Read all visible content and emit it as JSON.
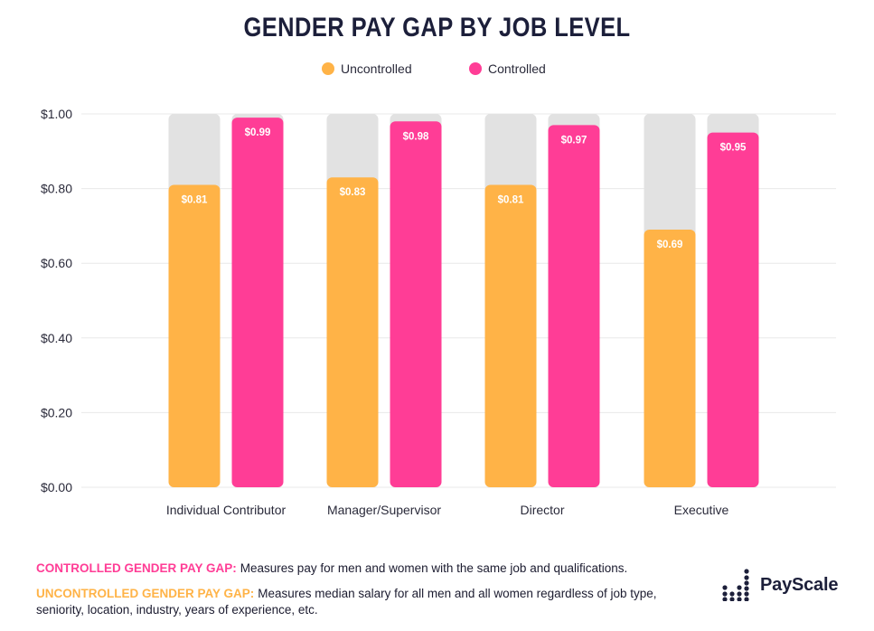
{
  "title": "GENDER PAY GAP BY JOB LEVEL",
  "colors": {
    "uncontrolled": "#FFB347",
    "controlled": "#FF3D96",
    "track": "#E2E2E2",
    "grid": "#E8E8E8"
  },
  "legend": [
    {
      "label": "Uncontrolled",
      "color": "#FFB347"
    },
    {
      "label": "Controlled",
      "color": "#FF3D96"
    }
  ],
  "chart_data": {
    "type": "bar",
    "title": "GENDER PAY GAP BY JOB LEVEL",
    "xlabel": "",
    "ylabel": "",
    "ylim": [
      0,
      1
    ],
    "y_ticks": [
      "$1.00",
      "$0.80",
      "$0.60",
      "$0.40",
      "$0.20",
      "$0.00"
    ],
    "y_tick_values": [
      1.0,
      0.8,
      0.6,
      0.4,
      0.2,
      0.0
    ],
    "categories": [
      "Individual Contributor",
      "Manager/Supervisor",
      "Director",
      "Executive"
    ],
    "series": [
      {
        "name": "Uncontrolled",
        "values": [
          0.81,
          0.83,
          0.81,
          0.69
        ],
        "labels": [
          "$0.81",
          "$0.83",
          "$0.81",
          "$0.69"
        ]
      },
      {
        "name": "Controlled",
        "values": [
          0.99,
          0.98,
          0.97,
          0.95
        ],
        "labels": [
          "$0.99",
          "$0.98",
          "$0.97",
          "$0.95"
        ]
      }
    ],
    "legend_position": "top-center",
    "grid": true
  },
  "footnotes": [
    {
      "key": "CONTROLLED GENDER PAY GAP:",
      "text": "Measures pay for men and women with the same job and qualifications.",
      "color": "#FF3D96"
    },
    {
      "key": "UNCONTROLLED GENDER PAY GAP:",
      "text": "Measures median salary for all men and all women regardless of job type, seniority, location, industry, years of experience, etc.",
      "color": "#FFB347"
    }
  ],
  "brand": {
    "name": "PayScale",
    "icon": "payscale-logo-icon"
  }
}
